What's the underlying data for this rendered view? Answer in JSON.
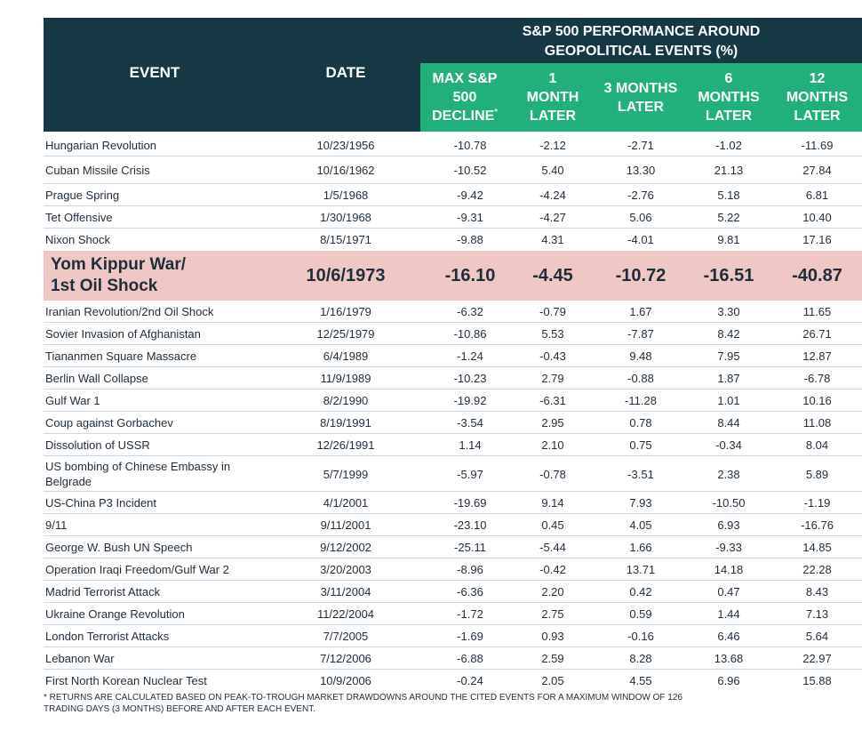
{
  "header": {
    "event_label": "EVENT",
    "date_label": "DATE",
    "group_title_line1": "S&P 500 PERFORMANCE AROUND",
    "group_title_line2": "GEOPOLITICAL EVENTS (%)",
    "col_max": "MAX S&P\n500\nDECLINE",
    "col_max_mark": "*",
    "col_1m": "1\nMONTH\nLATER",
    "col_3m": "3 MONTHS\nLATER",
    "col_6m": "6\nMONTHS\nLATER",
    "col_12m": "12\nMONTHS\nLATER"
  },
  "rows": [
    {
      "event": "Hungarian Revolution",
      "date": "10/23/1956",
      "max": "-10.78",
      "m1": "-2.12",
      "m3": "-2.71",
      "m6": "-1.02",
      "m12": "-11.69"
    },
    {
      "event": "Cuban Missile Crisis",
      "date": "10/16/1962",
      "max": "-10.52",
      "m1": "5.40",
      "m3": "13.30",
      "m6": "21.13",
      "m12": "27.84"
    },
    {
      "event": "Prague Spring",
      "date": "1/5/1968",
      "max": "-9.42",
      "m1": "-4.24",
      "m3": "-2.76",
      "m6": "5.18",
      "m12": "6.81"
    },
    {
      "event": "Tet Offensive",
      "date": "1/30/1968",
      "max": "-9.31",
      "m1": "-4.27",
      "m3": "5.06",
      "m6": "5.22",
      "m12": "10.40"
    },
    {
      "event": "Nixon Shock",
      "date": "8/15/1971",
      "max": "-9.88",
      "m1": "4.31",
      "m3": "-4.01",
      "m6": "9.81",
      "m12": "17.16"
    },
    {
      "event": "Yom Kippur War/\n1st Oil Shock",
      "date": "10/6/1973",
      "max": "-16.10",
      "m1": "-4.45",
      "m3": "-10.72",
      "m6": "-16.51",
      "m12": "-40.87"
    },
    {
      "event": "Iranian Revolution/2nd Oil Shock",
      "date": "1/16/1979",
      "max": "-6.32",
      "m1": "-0.79",
      "m3": "1.67",
      "m6": "3.30",
      "m12": "11.65"
    },
    {
      "event": "Sovier Invasion of Afghanistan",
      "date": "12/25/1979",
      "max": "-10.86",
      "m1": "5.53",
      "m3": "-7.87",
      "m6": "8.42",
      "m12": "26.71"
    },
    {
      "event": "Tiananmen Square Massacre",
      "date": "6/4/1989",
      "max": "-1.24",
      "m1": "-0.43",
      "m3": "9.48",
      "m6": "7.95",
      "m12": "12.87"
    },
    {
      "event": "Berlin Wall Collapse",
      "date": "11/9/1989",
      "max": "-10.23",
      "m1": "2.79",
      "m3": "-0.88",
      "m6": "1.87",
      "m12": "-6.78"
    },
    {
      "event": "Gulf War 1",
      "date": "8/2/1990",
      "max": "-19.92",
      "m1": "-6.31",
      "m3": "-11.28",
      "m6": "1.01",
      "m12": "10.16"
    },
    {
      "event": "Coup against Gorbachev",
      "date": "8/19/1991",
      "max": "-3.54",
      "m1": "2.95",
      "m3": "0.78",
      "m6": "8.44",
      "m12": "11.08"
    },
    {
      "event": "Dissolution of USSR",
      "date": "12/26/1991",
      "max": "1.14",
      "m1": "2.10",
      "m3": "0.75",
      "m6": "-0.34",
      "m12": "8.04"
    },
    {
      "event": "US bombing of Chinese Embassy in\nBelgrade",
      "date": "5/7/1999",
      "max": "-5.97",
      "m1": "-0.78",
      "m3": "-3.51",
      "m6": "2.38",
      "m12": "5.89"
    },
    {
      "event": "US-China P3 Incident",
      "date": "4/1/2001",
      "max": "-19.69",
      "m1": "9.14",
      "m3": "7.93",
      "m6": "-10.50",
      "m12": "-1.19"
    },
    {
      "event": "9/11",
      "date": "9/11/2001",
      "max": "-23.10",
      "m1": "0.45",
      "m3": "4.05",
      "m6": "6.93",
      "m12": "-16.76"
    },
    {
      "event": "George W. Bush UN Speech",
      "date": "9/12/2002",
      "max": "-25.11",
      "m1": "-5.44",
      "m3": "1.66",
      "m6": "-9.33",
      "m12": "14.85"
    },
    {
      "event": "Operation Iraqi Freedom/Gulf War 2",
      "date": "3/20/2003",
      "max": "-8.96",
      "m1": "-0.42",
      "m3": "13.71",
      "m6": "14.18",
      "m12": "22.28"
    },
    {
      "event": "Madrid Terrorist Attack",
      "date": "3/11/2004",
      "max": "-6.36",
      "m1": "2.20",
      "m3": "0.42",
      "m6": "0.47",
      "m12": "8.43"
    },
    {
      "event": "Ukraine Orange Revolution",
      "date": "11/22/2004",
      "max": "-1.72",
      "m1": "2.75",
      "m3": "0.59",
      "m6": "1.44",
      "m12": "7.13"
    },
    {
      "event": "London Terrorist Attacks",
      "date": "7/7/2005",
      "max": "-1.69",
      "m1": "0.93",
      "m3": "-0.16",
      "m6": "6.46",
      "m12": "5.64"
    },
    {
      "event": "Lebanon War",
      "date": "7/12/2006",
      "max": "-6.88",
      "m1": "2.59",
      "m3": "8.28",
      "m6": "13.68",
      "m12": "22.97"
    },
    {
      "event": "First North Korean Nuclear Test",
      "date": "10/9/2006",
      "max": "-0.24",
      "m1": "2.05",
      "m3": "4.55",
      "m6": "6.96",
      "m12": "15.88"
    }
  ],
  "highlight_index": 5,
  "footnote_line1": "* Returns are calculated based on peak-to-trough market drawdowns around the cited events for a maximum window of 126",
  "footnote_line2": "trading days (3 months) before and after each event."
}
